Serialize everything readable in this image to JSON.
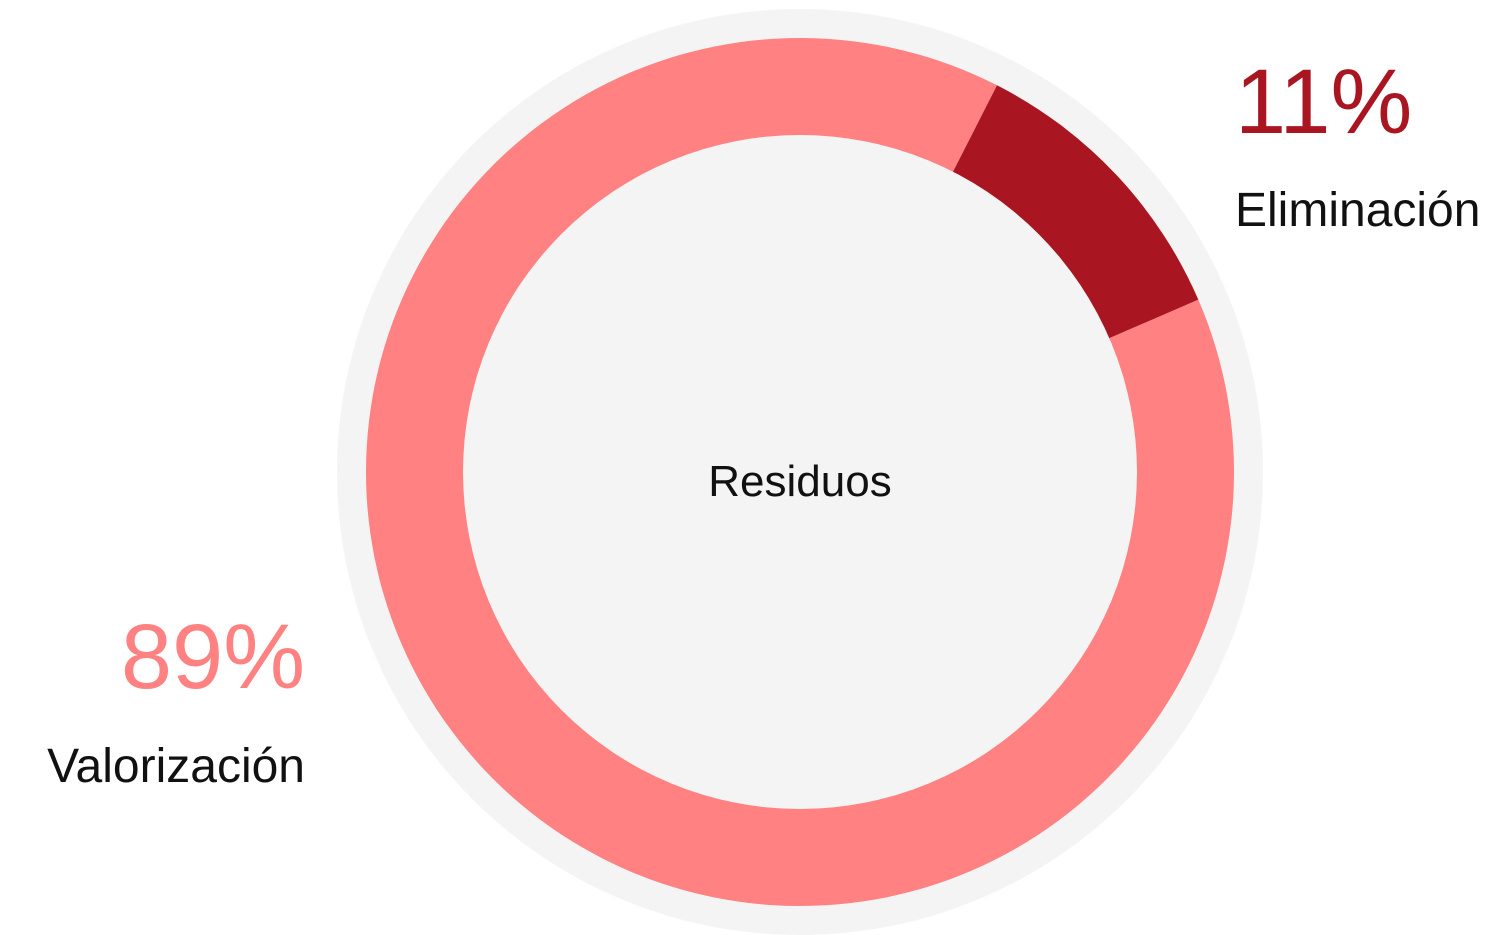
{
  "chart_data": {
    "type": "pie",
    "center_label": "Residuos",
    "categories": [
      "Valorización",
      "Eliminación"
    ],
    "values": [
      89,
      11
    ],
    "value_labels": [
      "89%",
      "11%"
    ],
    "colors": [
      "#ff8181",
      "#a91622"
    ]
  }
}
